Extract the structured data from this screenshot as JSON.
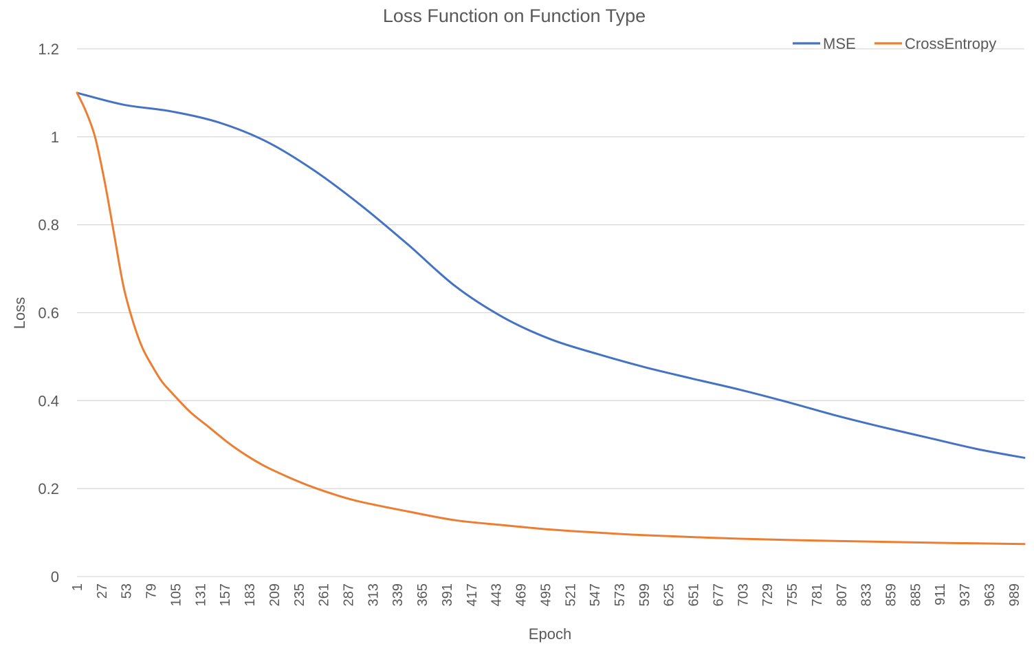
{
  "chart_data": {
    "type": "line",
    "title": "Loss Function on Function Type",
    "xlabel": "Epoch",
    "ylabel": "Loss",
    "ylim": [
      0,
      1.2
    ],
    "yticks": [
      "0",
      "0.2",
      "0.4",
      "0.6",
      "0.8",
      "1",
      "1.2"
    ],
    "xlim": [
      1,
      1000
    ],
    "xticks": [
      "1",
      "27",
      "53",
      "79",
      "105",
      "131",
      "157",
      "183",
      "209",
      "235",
      "261",
      "287",
      "313",
      "339",
      "365",
      "391",
      "417",
      "443",
      "469",
      "495",
      "521",
      "547",
      "573",
      "599",
      "625",
      "651",
      "677",
      "703",
      "729",
      "755",
      "781",
      "807",
      "833",
      "859",
      "885",
      "911",
      "937",
      "963",
      "989"
    ],
    "grid": "horizontal",
    "legend": "top-right",
    "series": [
      {
        "name": "MSE",
        "color": "#4472C4",
        "x": [
          1,
          50,
          100,
          150,
          200,
          250,
          300,
          350,
          400,
          450,
          500,
          550,
          600,
          650,
          700,
          750,
          800,
          850,
          900,
          950,
          1000
        ],
        "y": [
          1.1,
          1.073,
          1.058,
          1.033,
          0.99,
          0.925,
          0.845,
          0.755,
          0.66,
          0.59,
          0.54,
          0.506,
          0.476,
          0.45,
          0.425,
          0.397,
          0.367,
          0.34,
          0.315,
          0.29,
          0.27
        ]
      },
      {
        "name": "CrossEntropy",
        "color": "#ED7D31",
        "x": [
          1,
          10,
          20,
          30,
          40,
          50,
          60,
          70,
          80,
          90,
          100,
          120,
          140,
          160,
          180,
          200,
          225,
          250,
          275,
          300,
          350,
          400,
          450,
          500,
          550,
          600,
          700,
          800,
          900,
          1000
        ],
        "y": [
          1.1,
          1.06,
          1.0,
          0.9,
          0.78,
          0.66,
          0.58,
          0.52,
          0.48,
          0.445,
          0.42,
          0.375,
          0.34,
          0.305,
          0.275,
          0.25,
          0.225,
          0.203,
          0.185,
          0.17,
          0.148,
          0.128,
          0.117,
          0.107,
          0.1,
          0.094,
          0.086,
          0.081,
          0.077,
          0.074
        ]
      }
    ]
  }
}
